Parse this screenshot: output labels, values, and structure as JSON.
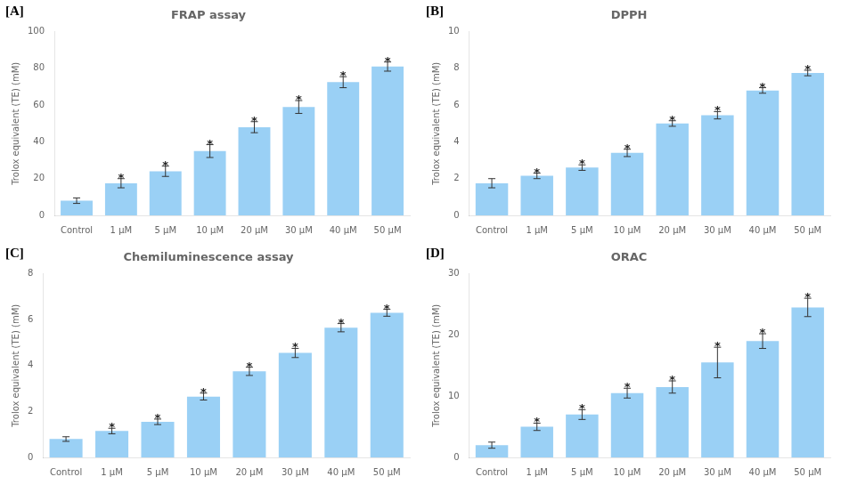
{
  "chart_data": [
    {
      "type": "bar",
      "title": "FRAP assay",
      "categories": [
        "Control",
        "1 μM",
        "5 μM",
        "10 μM",
        "20 μM",
        "30 μM",
        "40 μM",
        "50 μM"
      ],
      "values": [
        8.0,
        17.5,
        24.0,
        35.0,
        48.0,
        59.0,
        72.5,
        81.0
      ],
      "errors": [
        1.5,
        2.5,
        2.8,
        3.5,
        3.0,
        3.5,
        3.0,
        2.5
      ],
      "ylim": [
        0,
        100
      ],
      "yticks": [
        0,
        20,
        40,
        60,
        80,
        100
      ],
      "ylabel": "Trolox equivalent (TE) (mM)",
      "grid": false,
      "annotations": [
        {
          "text": "[A]"
        },
        {
          "text": "*",
          "category": "1 μM"
        },
        {
          "text": "*",
          "category": "5 μM"
        },
        {
          "text": "*",
          "category": "10 μM"
        },
        {
          "text": "*",
          "category": "20 μM"
        },
        {
          "text": "*",
          "category": "30 μM"
        },
        {
          "text": "*",
          "category": "40 μM"
        },
        {
          "text": "*",
          "category": "50 μM"
        }
      ]
    },
    {
      "type": "bar",
      "title": "DPPH",
      "categories": [
        "Control",
        "1 μM",
        "5 μM",
        "10 μM",
        "20 μM",
        "30 μM",
        "40 μM",
        "50 μM"
      ],
      "values": [
        1.75,
        2.15,
        2.6,
        3.4,
        5.0,
        5.45,
        6.8,
        7.75
      ],
      "errors": [
        0.25,
        0.15,
        0.15,
        0.2,
        0.15,
        0.2,
        0.15,
        0.15
      ],
      "ylim": [
        0,
        10
      ],
      "yticks": [
        0,
        2,
        4,
        6,
        8,
        10
      ],
      "ylabel": "Trolox equivalent (TE) (mM)",
      "grid": false,
      "annotations": [
        {
          "text": "[B]"
        },
        {
          "text": "*",
          "category": "1 μM"
        },
        {
          "text": "*",
          "category": "5 μM"
        },
        {
          "text": "*",
          "category": "10 μM"
        },
        {
          "text": "*",
          "category": "20 μM"
        },
        {
          "text": "*",
          "category": "30 μM"
        },
        {
          "text": "*",
          "category": "40 μM"
        },
        {
          "text": "*",
          "category": "50 μM"
        }
      ]
    },
    {
      "type": "bar",
      "title": "Chemiluminescence assay",
      "categories": [
        "Control",
        "1 μM",
        "5 μM",
        "10 μM",
        "20 μM",
        "30 μM",
        "40 μM",
        "50 μM"
      ],
      "values": [
        0.8,
        1.15,
        1.55,
        2.65,
        3.75,
        4.55,
        5.65,
        6.3
      ],
      "errors": [
        0.1,
        0.12,
        0.12,
        0.15,
        0.18,
        0.2,
        0.18,
        0.15
      ],
      "ylim": [
        0,
        8
      ],
      "yticks": [
        0,
        2,
        4,
        6,
        8
      ],
      "ylabel": "Trolox equivalent (TE) (mM)",
      "grid": false,
      "annotations": [
        {
          "text": "[C]"
        },
        {
          "text": "*",
          "category": "1 μM"
        },
        {
          "text": "*",
          "category": "5 μM"
        },
        {
          "text": "*",
          "category": "10 μM"
        },
        {
          "text": "*",
          "category": "20 μM"
        },
        {
          "text": "*",
          "category": "30 μM"
        },
        {
          "text": "*",
          "category": "40 μM"
        },
        {
          "text": "*",
          "category": "50 μM"
        }
      ]
    },
    {
      "type": "bar",
      "title": "ORAC",
      "categories": [
        "Control",
        "1 μM",
        "5 μM",
        "10 μM",
        "20 μM",
        "30 μM",
        "40 μM",
        "50 μM"
      ],
      "values": [
        2.0,
        5.0,
        7.0,
        10.5,
        11.5,
        15.5,
        19.0,
        24.5
      ],
      "errors": [
        0.5,
        0.6,
        0.8,
        0.8,
        1.0,
        2.5,
        1.2,
        1.5
      ],
      "ylim": [
        0,
        30
      ],
      "yticks": [
        0,
        10,
        20,
        30
      ],
      "ylabel": "Trolox equivalent (TE) (mM)",
      "grid": false,
      "annotations": [
        {
          "text": "[D]"
        },
        {
          "text": "*",
          "category": "1 μM"
        },
        {
          "text": "*",
          "category": "5 μM"
        },
        {
          "text": "*",
          "category": "10 μM"
        },
        {
          "text": "*",
          "category": "20 μM"
        },
        {
          "text": "*",
          "category": "30 μM"
        },
        {
          "text": "*",
          "category": "40 μM"
        },
        {
          "text": "*",
          "category": "50 μM"
        }
      ]
    }
  ]
}
